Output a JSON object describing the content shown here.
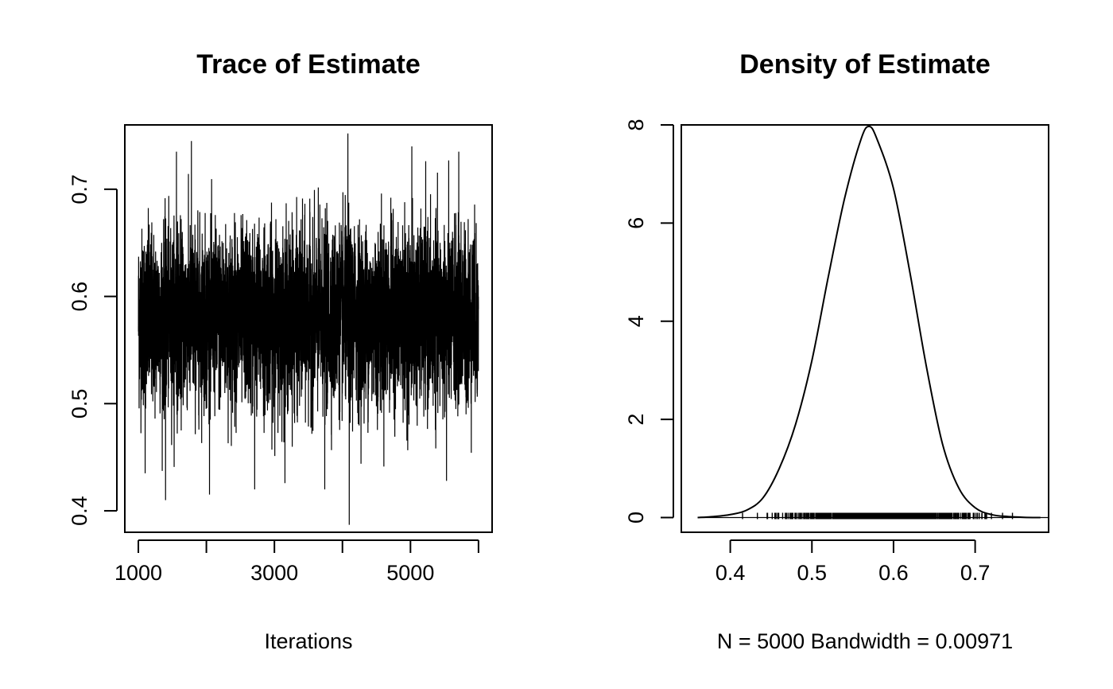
{
  "chart_data": [
    {
      "type": "line",
      "title": "Trace of Estimate",
      "xlabel": "Iterations",
      "ylabel": "",
      "xlim": [
        1000,
        6000
      ],
      "ylim": [
        0.38,
        0.76
      ],
      "x_ticks": [
        1000,
        2000,
        3000,
        4000,
        5000,
        6000
      ],
      "x_tick_labels": [
        "1000",
        "",
        "3000",
        "",
        "5000",
        ""
      ],
      "y_ticks": [
        0.4,
        0.5,
        0.6,
        0.7
      ],
      "y_tick_labels": [
        "0.4",
        "0.5",
        "0.6",
        "0.7"
      ],
      "series": [
        {
          "name": "Estimate",
          "n_iterations": 5000,
          "start": 1001,
          "end": 6000,
          "mean": 0.58,
          "sd": 0.05,
          "min": 0.387,
          "max": 0.752,
          "spikes": [
            {
              "x": 1400,
              "y": 0.41
            },
            {
              "x": 1780,
              "y": 0.745
            },
            {
              "x": 4080,
              "y": 0.752
            },
            {
              "x": 4100,
              "y": 0.387
            },
            {
              "x": 3740,
              "y": 0.42
            },
            {
              "x": 2710,
              "y": 0.42
            },
            {
              "x": 5020,
              "y": 0.74
            },
            {
              "x": 5710,
              "y": 0.735
            },
            {
              "x": 5530,
              "y": 0.428
            },
            {
              "x": 1100,
              "y": 0.435
            },
            {
              "x": 1560,
              "y": 0.735
            }
          ]
        }
      ]
    },
    {
      "type": "line",
      "title": "Density of Estimate",
      "xlabel": "N = 5000   Bandwidth = 0.00971",
      "ylabel": "",
      "xlim": [
        0.34,
        0.79
      ],
      "ylim": [
        -0.3,
        8.0
      ],
      "x_ticks": [
        0.4,
        0.5,
        0.6,
        0.7
      ],
      "x_tick_labels": [
        "0.4",
        "0.5",
        "0.6",
        "0.7"
      ],
      "y_ticks": [
        0,
        2,
        4,
        6,
        8
      ],
      "y_tick_labels": [
        "0",
        "2",
        "4",
        "6",
        "8"
      ],
      "series": [
        {
          "name": "density",
          "x": [
            0.36,
            0.38,
            0.4,
            0.42,
            0.44,
            0.46,
            0.48,
            0.5,
            0.52,
            0.54,
            0.56,
            0.57,
            0.58,
            0.6,
            0.62,
            0.64,
            0.66,
            0.68,
            0.7,
            0.72,
            0.74,
            0.76,
            0.78
          ],
          "y": [
            0.0,
            0.02,
            0.06,
            0.15,
            0.4,
            1.0,
            1.9,
            3.2,
            4.9,
            6.5,
            7.7,
            7.97,
            7.7,
            6.7,
            5.0,
            3.1,
            1.5,
            0.6,
            0.2,
            0.06,
            0.02,
            0.005,
            0.0
          ]
        }
      ],
      "rug": {
        "n": 5000,
        "min": 0.387,
        "max": 0.752,
        "mean": 0.58,
        "sd": 0.05
      }
    }
  ]
}
